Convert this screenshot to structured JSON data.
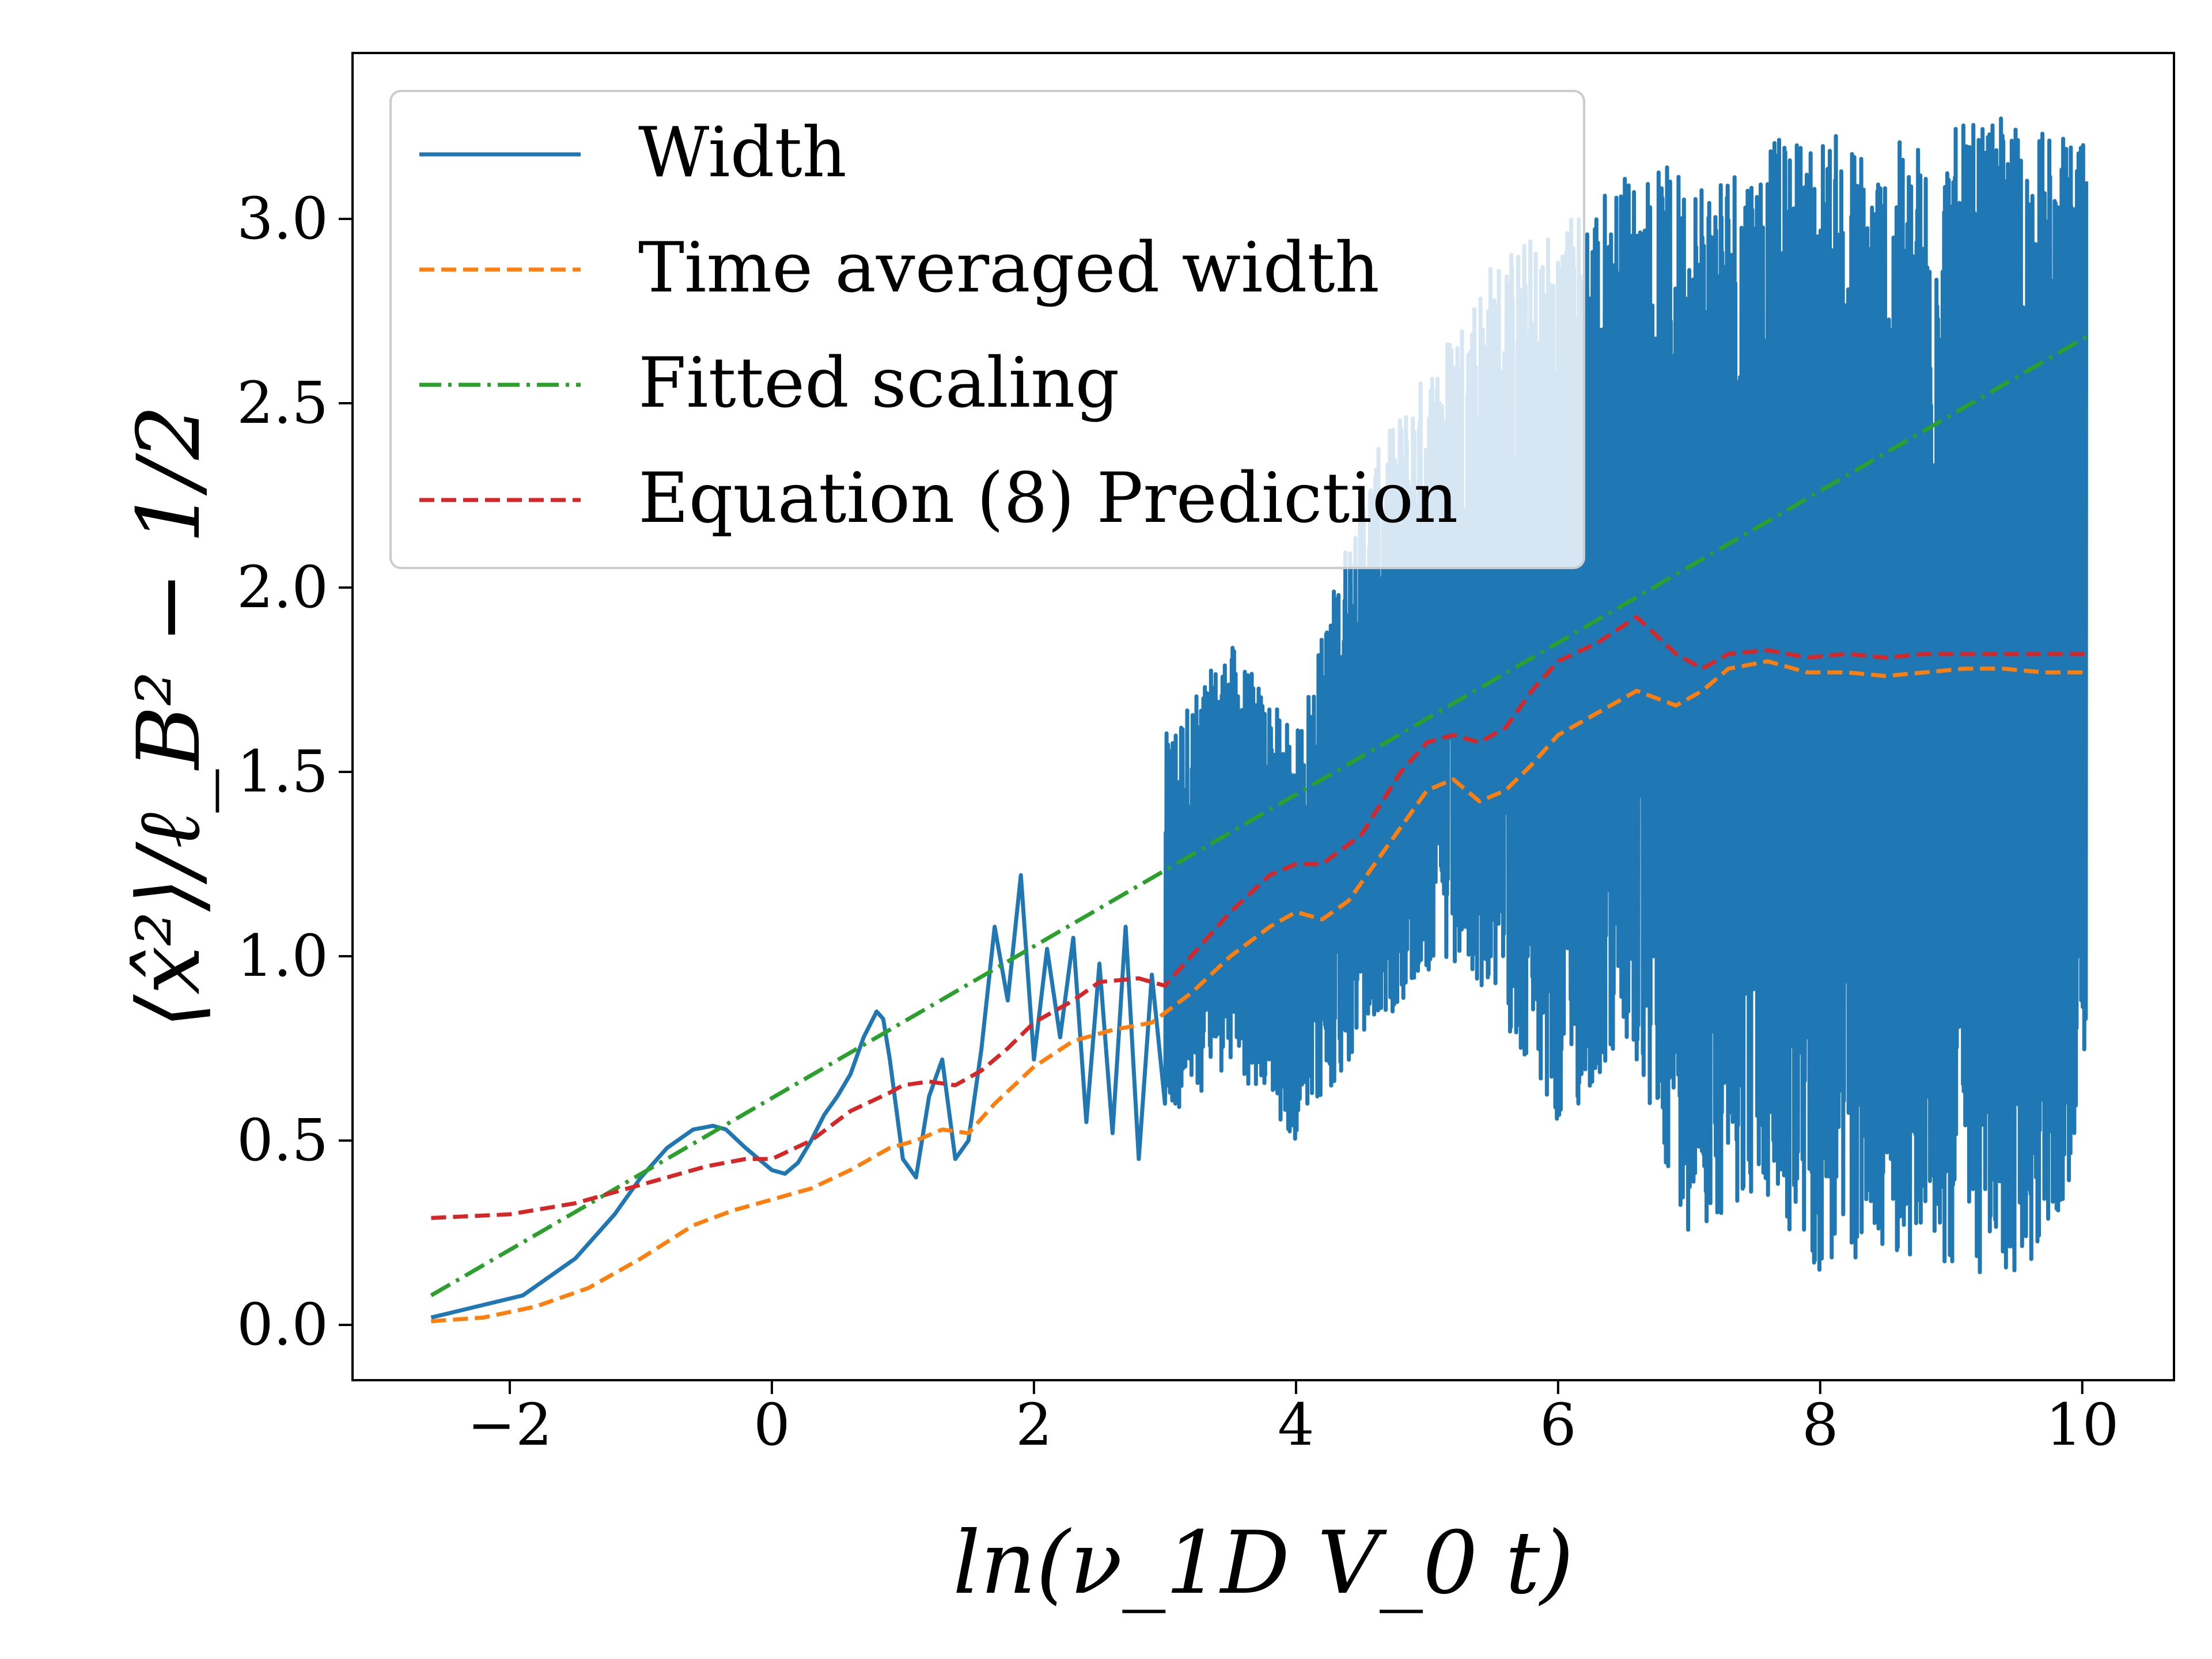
{
  "chart_data": {
    "type": "line",
    "xlabel": "ln(ν_1D V_0 t)",
    "ylabel": "⟨x̂²⟩/ℓ_B² − 1/2",
    "xlim": [
      -3.2,
      10.7
    ],
    "ylim": [
      -0.15,
      3.45
    ],
    "x_ticks": [
      -2,
      0,
      2,
      4,
      6,
      8,
      10
    ],
    "x_tick_labels": [
      "−2",
      "0",
      "2",
      "4",
      "6",
      "8",
      "10"
    ],
    "y_ticks": [
      0.0,
      0.5,
      1.0,
      1.5,
      2.0,
      2.5,
      3.0
    ],
    "y_tick_labels": [
      "0.0",
      "0.5",
      "1.0",
      "1.5",
      "2.0",
      "2.5",
      "3.0"
    ],
    "legend_position": "top-left",
    "series": [
      {
        "name": "Width",
        "color": "#1f77b4",
        "style": "solid",
        "x": [
          -2.6,
          -1.9,
          -1.5,
          -1.2,
          -1.0,
          -0.8,
          -0.6,
          -0.45,
          -0.35,
          -0.2,
          0.0,
          0.1,
          0.2,
          0.3,
          0.4,
          0.5,
          0.6,
          0.7,
          0.8,
          0.85,
          0.9,
          1.0,
          1.1,
          1.2,
          1.3,
          1.4,
          1.5,
          1.6,
          1.7,
          1.8,
          1.9,
          2.0,
          2.1,
          2.2,
          2.3,
          2.4,
          2.5,
          2.6,
          2.7,
          2.8,
          2.9,
          3.0
        ],
        "values": [
          0.02,
          0.08,
          0.18,
          0.3,
          0.4,
          0.48,
          0.53,
          0.54,
          0.53,
          0.48,
          0.42,
          0.41,
          0.44,
          0.5,
          0.57,
          0.62,
          0.68,
          0.78,
          0.85,
          0.83,
          0.72,
          0.45,
          0.4,
          0.62,
          0.72,
          0.45,
          0.5,
          0.75,
          1.08,
          0.88,
          1.22,
          0.72,
          1.02,
          0.78,
          1.05,
          0.55,
          0.98,
          0.52,
          1.08,
          0.45,
          0.95,
          0.6
        ],
        "noisy_envelope": {
          "x": [
            3.0,
            3.5,
            4.0,
            4.5,
            5.0,
            5.5,
            6.0,
            6.5,
            7.0,
            7.5,
            8.0,
            8.5,
            9.0,
            9.5,
            10.03
          ],
          "lower": [
            0.55,
            0.7,
            0.5,
            0.75,
            0.95,
            0.9,
            0.5,
            0.75,
            0.25,
            0.35,
            0.12,
            0.2,
            0.15,
            0.1,
            0.42
          ],
          "upper": [
            1.6,
            1.85,
            1.6,
            2.3,
            2.6,
            2.9,
            3.0,
            3.13,
            3.15,
            3.2,
            3.25,
            3.2,
            3.25,
            3.28,
            3.2
          ]
        }
      },
      {
        "name": "Time averaged width",
        "color": "#ff7f0e",
        "style": "dashed",
        "x": [
          -2.6,
          -2.2,
          -1.8,
          -1.4,
          -1.0,
          -0.6,
          -0.3,
          0.0,
          0.3,
          0.6,
          0.9,
          1.1,
          1.3,
          1.5,
          1.7,
          2.0,
          2.3,
          2.6,
          2.9,
          3.2,
          3.5,
          3.8,
          4.0,
          4.2,
          4.4,
          4.7,
          5.0,
          5.2,
          5.4,
          5.6,
          5.8,
          6.0,
          6.3,
          6.6,
          6.9,
          7.1,
          7.3,
          7.6,
          7.9,
          8.2,
          8.5,
          8.8,
          9.1,
          9.4,
          9.7,
          10.03
        ],
        "values": [
          0.01,
          0.02,
          0.05,
          0.1,
          0.18,
          0.27,
          0.31,
          0.34,
          0.37,
          0.42,
          0.48,
          0.5,
          0.53,
          0.52,
          0.6,
          0.7,
          0.77,
          0.8,
          0.82,
          0.9,
          1.0,
          1.08,
          1.12,
          1.1,
          1.15,
          1.3,
          1.45,
          1.48,
          1.42,
          1.45,
          1.52,
          1.6,
          1.66,
          1.72,
          1.68,
          1.72,
          1.78,
          1.8,
          1.77,
          1.77,
          1.76,
          1.77,
          1.78,
          1.78,
          1.77,
          1.77
        ]
      },
      {
        "name": "Fitted scaling",
        "color": "#2ca02c",
        "style": "dashdot",
        "x": [
          -2.6,
          10.03
        ],
        "values": [
          0.08,
          2.68
        ]
      },
      {
        "name": "Equation (8) Prediction",
        "color": "#d62728",
        "style": "dashed",
        "x": [
          -2.6,
          -2.0,
          -1.5,
          -1.0,
          -0.5,
          -0.2,
          0.0,
          0.3,
          0.6,
          0.9,
          1.0,
          1.2,
          1.4,
          1.6,
          1.8,
          2.0,
          2.3,
          2.5,
          2.8,
          3.0,
          3.2,
          3.5,
          3.8,
          4.0,
          4.2,
          4.5,
          4.8,
          5.0,
          5.2,
          5.4,
          5.6,
          5.8,
          6.0,
          6.3,
          6.6,
          6.9,
          7.1,
          7.3,
          7.6,
          7.9,
          8.2,
          8.5,
          8.8,
          9.1,
          9.4,
          9.7,
          10.03
        ],
        "values": [
          0.29,
          0.3,
          0.33,
          0.38,
          0.43,
          0.45,
          0.45,
          0.5,
          0.58,
          0.63,
          0.65,
          0.66,
          0.65,
          0.69,
          0.75,
          0.82,
          0.88,
          0.93,
          0.94,
          0.92,
          1.0,
          1.12,
          1.22,
          1.25,
          1.25,
          1.33,
          1.5,
          1.58,
          1.6,
          1.58,
          1.62,
          1.72,
          1.8,
          1.85,
          1.92,
          1.82,
          1.78,
          1.82,
          1.83,
          1.81,
          1.82,
          1.81,
          1.82,
          1.82,
          1.82,
          1.82,
          1.82
        ]
      }
    ]
  }
}
